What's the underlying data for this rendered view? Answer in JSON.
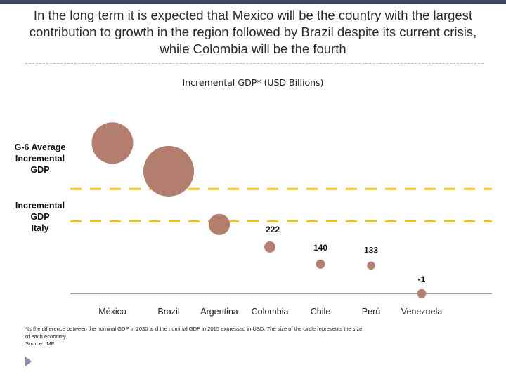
{
  "headline": {
    "line1": "In the long term it is expected that Mexico will be the country with the largest",
    "line2": "contribution to growth in the region followed by Brazil despite its current crisis,",
    "line3": "while Colombia will be the fourth"
  },
  "colors": {
    "bubble": "#b47e6e",
    "reference_line": "#f0c020",
    "axis": "#333333",
    "top_bar": "#3a4863"
  },
  "chart_data": {
    "type": "bubble",
    "title": "Incremental GDP* (USD Billions)",
    "categories": [
      "México",
      "Brazil",
      "Argentina",
      "Colombia",
      "Chile",
      "Perú",
      "Venezuela"
    ],
    "values": [
      720,
      585,
      330,
      222,
      140,
      133,
      -1
    ],
    "value_labels": [
      "",
      "",
      "",
      "222",
      "140",
      "133",
      "-1"
    ],
    "bubble_size_relative": [
      0.82,
      1.0,
      0.42,
      0.22,
      0.18,
      0.16,
      0.18
    ],
    "reference_lines": [
      {
        "label": "G-6 Average Incremental GDP",
        "value": 500
      },
      {
        "label": "Incremental GDP Italy",
        "value": 345
      }
    ],
    "ylim": [
      0,
      800
    ],
    "xlabel": "",
    "ylabel": ""
  },
  "reference_labels": {
    "g6": [
      "G-6 Average",
      "Incremental",
      "GDP"
    ],
    "italy": [
      "Incremental",
      "GDP",
      "Italy"
    ]
  },
  "footnote": {
    "line1": "*Is the difference between the nominal GDP in 2030 and the nominal GDP in 2015 expressed in USD. The size of the circle represents the size",
    "line2": "of each economy.",
    "line3": "Source: IMF."
  }
}
